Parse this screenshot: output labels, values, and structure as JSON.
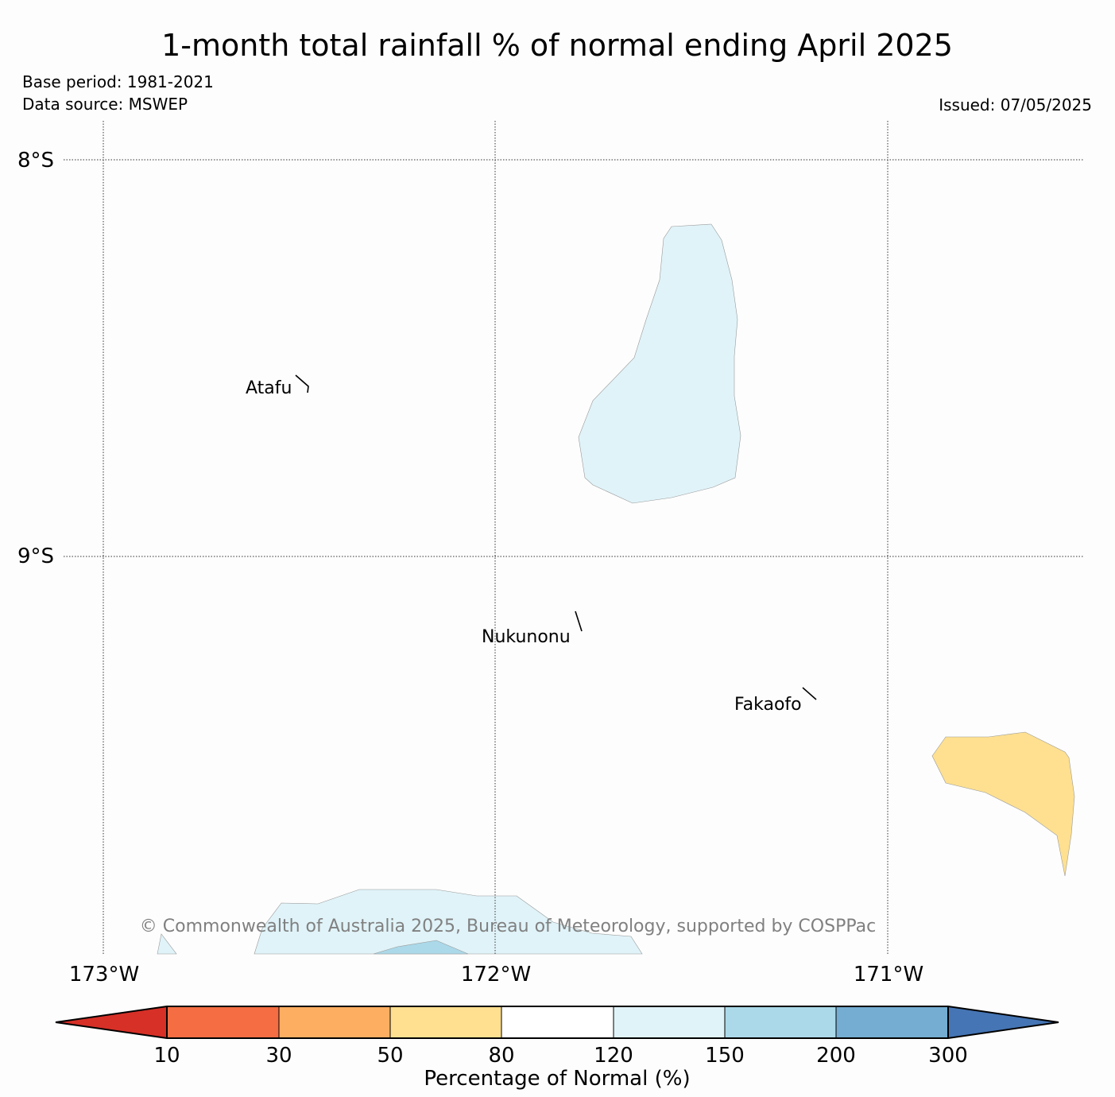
{
  "header": {
    "title": "1-month total rainfall % of normal ending April 2025",
    "base_period": "Base period: 1981-2021",
    "data_source": "Data source: MSWEP",
    "issued": "Issued: 07/05/2025"
  },
  "map": {
    "lat_labels": [
      "8°S",
      "9°S"
    ],
    "lon_labels": [
      "173°W",
      "172°W",
      "171°W"
    ],
    "places": [
      {
        "name": "Atafu"
      },
      {
        "name": "Nukunonu"
      },
      {
        "name": "Fakaofo"
      }
    ],
    "regions": [
      {
        "category": "120-150",
        "color": "#e0f3f8"
      },
      {
        "category": "50-80",
        "color": "#fee090"
      },
      {
        "category": "150-200",
        "color": "#abd9e9"
      }
    ],
    "copyright": "© Commonwealth of Australia 2025, Bureau of Meteorology, supported by COSPPac"
  },
  "legend": {
    "title": "Percentage of Normal (%)",
    "ticks": [
      "10",
      "30",
      "50",
      "80",
      "120",
      "150",
      "200",
      "300"
    ],
    "colors": {
      "below_10": "#d73027",
      "10_30": "#f46d43",
      "30_50": "#fdae61",
      "50_80": "#fee090",
      "80_120": "#ffffff",
      "120_150": "#e0f3f8",
      "150_200": "#abd9e9",
      "200_300": "#74add1",
      "above_300": "#4575b4"
    }
  }
}
